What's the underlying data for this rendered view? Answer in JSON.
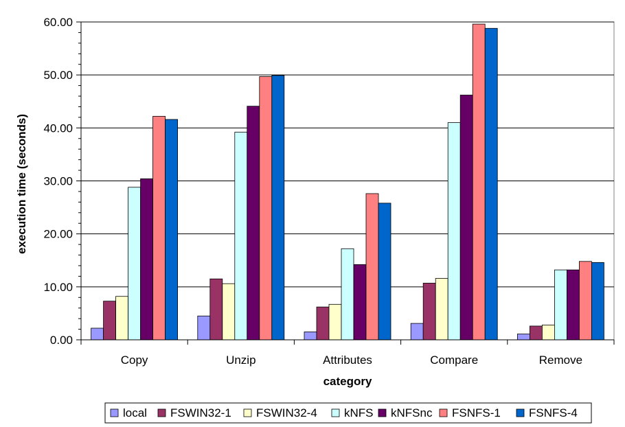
{
  "chart_data": {
    "type": "bar",
    "title": "",
    "xlabel": "category",
    "ylabel": "execution time (seconds)",
    "ylim": [
      0,
      60
    ],
    "yticks": [
      "0.00",
      "10.00",
      "20.00",
      "30.00",
      "40.00",
      "50.00",
      "60.00"
    ],
    "grid": true,
    "legend_position": "bottom",
    "categories": [
      "Copy",
      "Unzip",
      "Attributes",
      "Compare",
      "Remove"
    ],
    "series": [
      {
        "name": "local",
        "color": "#9999ff",
        "values": [
          2.2,
          4.5,
          1.5,
          3.1,
          1.1
        ]
      },
      {
        "name": "FSWIN32-1",
        "color": "#993366",
        "values": [
          7.3,
          11.5,
          6.2,
          10.7,
          2.6
        ]
      },
      {
        "name": "FSWIN32-4",
        "color": "#ffffcc",
        "values": [
          8.2,
          10.6,
          6.7,
          11.6,
          2.8
        ]
      },
      {
        "name": "kNFS",
        "color": "#ccffff",
        "values": [
          28.8,
          39.2,
          17.2,
          41.0,
          13.2
        ]
      },
      {
        "name": "kNFSnc",
        "color": "#660066",
        "values": [
          30.4,
          44.1,
          14.2,
          46.2,
          13.2
        ]
      },
      {
        "name": "FSNFS-1",
        "color": "#ff8080",
        "values": [
          42.2,
          49.7,
          27.6,
          59.6,
          14.8
        ]
      },
      {
        "name": "FSNFS-4",
        "color": "#0066cc",
        "values": [
          41.6,
          49.9,
          25.8,
          58.8,
          14.6
        ]
      }
    ]
  }
}
